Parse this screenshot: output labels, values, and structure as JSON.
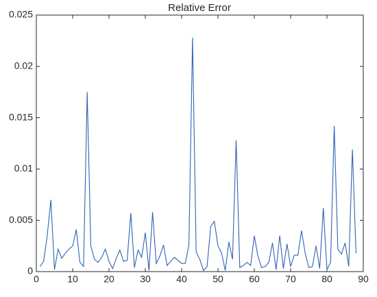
{
  "chart_data": {
    "type": "line",
    "title": "Relative Error",
    "x": [
      1,
      2,
      3,
      4,
      5,
      6,
      7,
      8,
      9,
      10,
      11,
      12,
      13,
      14,
      15,
      16,
      17,
      18,
      19,
      20,
      21,
      22,
      23,
      24,
      25,
      26,
      27,
      28,
      29,
      30,
      31,
      32,
      33,
      34,
      35,
      36,
      37,
      38,
      39,
      40,
      41,
      42,
      43,
      44,
      45,
      46,
      47,
      48,
      49,
      50,
      51,
      52,
      53,
      54,
      55,
      56,
      57,
      58,
      59,
      60,
      61,
      62,
      63,
      64,
      65,
      66,
      67,
      68,
      69,
      70,
      71,
      72,
      73,
      74,
      75,
      76,
      77,
      78,
      79,
      80,
      81,
      82,
      83,
      84,
      85,
      86,
      87,
      88
    ],
    "values": [
      0.0005,
      0.001,
      0.0035,
      0.007,
      0.0002,
      0.0022,
      0.0013,
      0.0018,
      0.0022,
      0.0025,
      0.0041,
      0.0009,
      0.0005,
      0.0175,
      0.0025,
      0.0012,
      0.0009,
      0.0014,
      0.0022,
      0.001,
      0.0003,
      0.0013,
      0.0021,
      0.001,
      0.0011,
      0.0057,
      0.0004,
      0.0021,
      0.0014,
      0.0038,
      0.0001,
      0.0058,
      0.0008,
      0.0015,
      0.0026,
      0.0006,
      0.001,
      0.0014,
      0.0011,
      0.0008,
      0.0008,
      0.0026,
      0.0228,
      0.0019,
      0.0012,
      0.0001,
      0.0005,
      0.0044,
      0.0049,
      0.0025,
      0.0018,
      0.0001,
      0.0029,
      0.0012,
      0.0128,
      0.0004,
      0.0006,
      0.0009,
      0.0006,
      0.0035,
      0.0015,
      0.0004,
      0.0005,
      0.0009,
      0.0028,
      0.0002,
      0.0035,
      0.0003,
      0.0027,
      0.0005,
      0.0016,
      0.0016,
      0.004,
      0.0018,
      0.0004,
      0.0005,
      0.0025,
      0.0003,
      0.0062,
      0.0002,
      0.0009,
      0.0142,
      0.0022,
      0.0017,
      0.0028,
      0.0005,
      0.0119,
      0.0018
    ],
    "color": "#2f62b4",
    "xlim": [
      0,
      90
    ],
    "xticks": [
      0,
      10,
      20,
      30,
      40,
      50,
      60,
      70,
      80,
      90
    ],
    "ylim": [
      0,
      0.025
    ],
    "yticks": [
      0,
      0.005,
      0.01,
      0.015,
      0.02,
      0.025
    ]
  }
}
